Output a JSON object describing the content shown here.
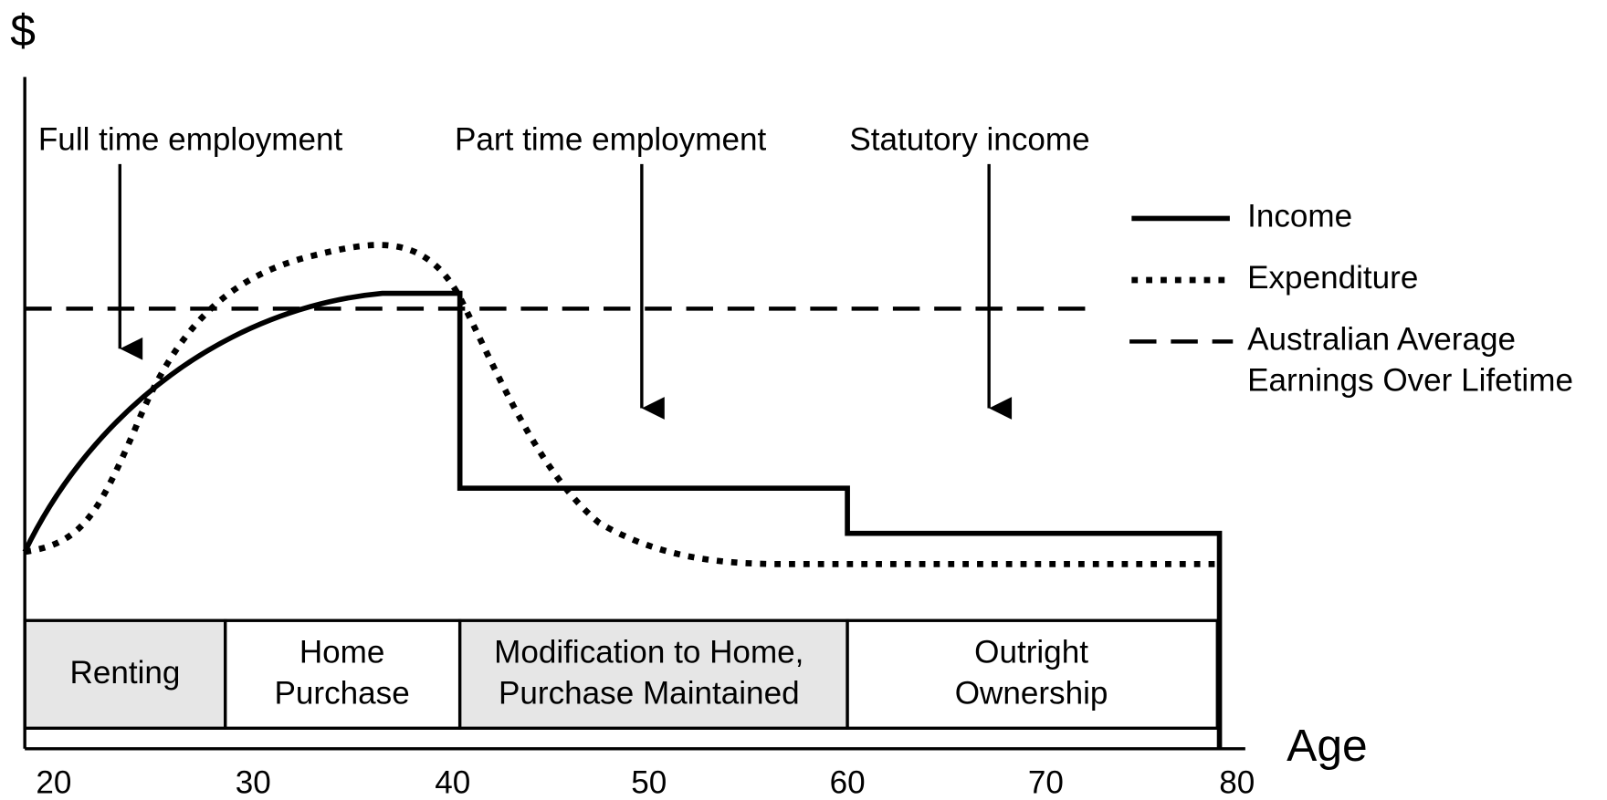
{
  "axes": {
    "y_label": "$",
    "x_label": "Age",
    "x_ticks": [
      "20",
      "30",
      "40",
      "50",
      "60",
      "70",
      "80"
    ]
  },
  "annotations": [
    "Full time employment",
    "Part time employment",
    "Statutory income"
  ],
  "legend": [
    [
      "Income"
    ],
    [
      "Expenditure"
    ],
    [
      "Australian Average",
      "Earnings Over Lifetime"
    ]
  ],
  "phases": [
    [
      "Renting"
    ],
    [
      "Home",
      "Purchase"
    ],
    [
      "Modification to Home,",
      "Purchase Maintained"
    ],
    [
      "Outright",
      "Ownership"
    ]
  ]
}
